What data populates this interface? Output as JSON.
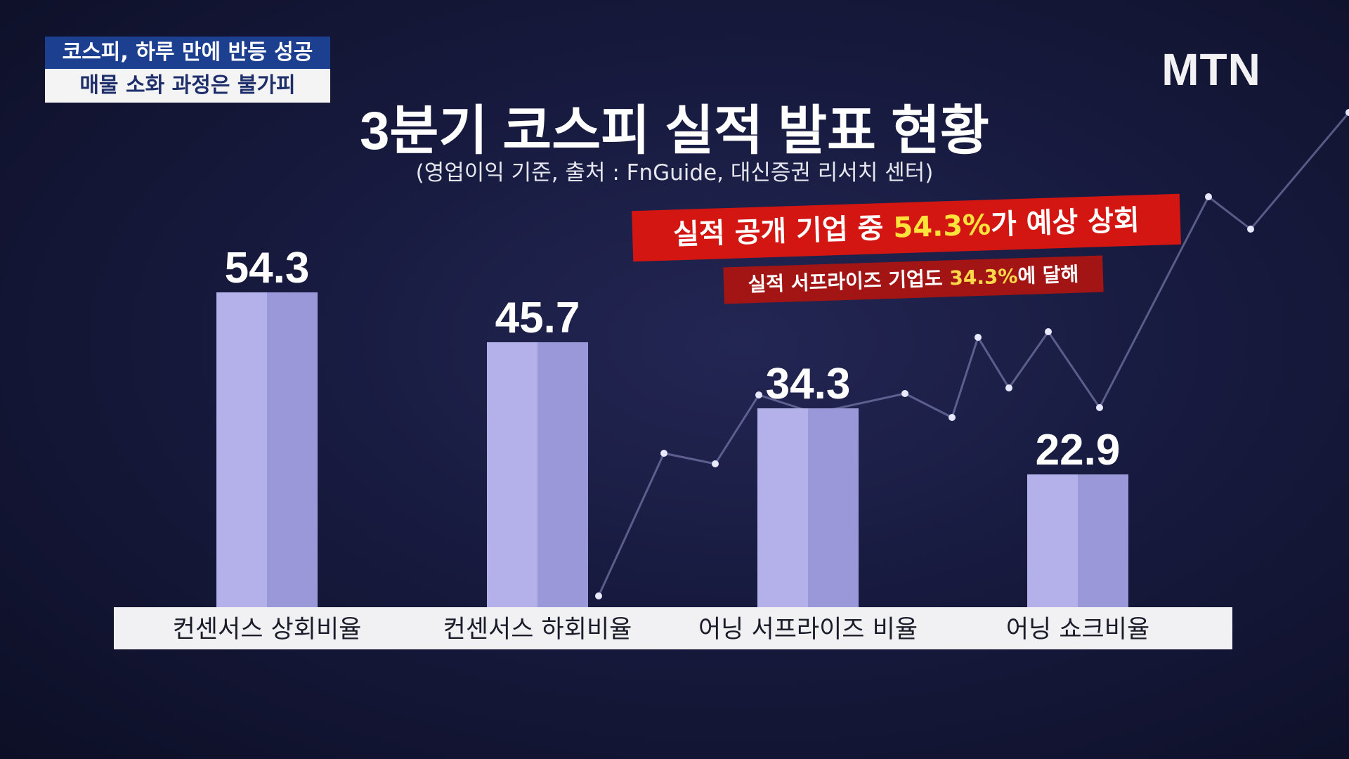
{
  "headline": {
    "top": "코스피, 하루 만에 반등 성공",
    "bottom": "매물 소화 과정은 불가피"
  },
  "logo": "MTN",
  "callout": {
    "main_prefix": "실적 공개 기업 중 ",
    "main_highlight": "54.3%",
    "main_suffix": "가 예상 상회",
    "sub_prefix": "실적 서프라이즈 기업도 ",
    "sub_highlight": "34.3%",
    "sub_suffix": "에 달해"
  },
  "colors": {
    "bar_light": "#b4b0ea",
    "bar_dark": "#9b98d9",
    "callout_red": "#d41612",
    "highlight_yellow": "#ffe23a"
  },
  "chart_data": {
    "type": "bar",
    "title": "3분기 코스피 실적 발표 현황",
    "subtitle": "(영업이익 기준, 출처 : FnGuide, 대신증권 리서치 센터)",
    "categories": [
      "컨센서스 상회비율",
      "컨센서스 하회비율",
      "어닝 서프라이즈 비율",
      "어닝 쇼크비율"
    ],
    "values": [
      54.3,
      45.7,
      34.3,
      22.9
    ],
    "ylim": [
      0,
      60
    ],
    "grid": false,
    "legend": "none"
  }
}
